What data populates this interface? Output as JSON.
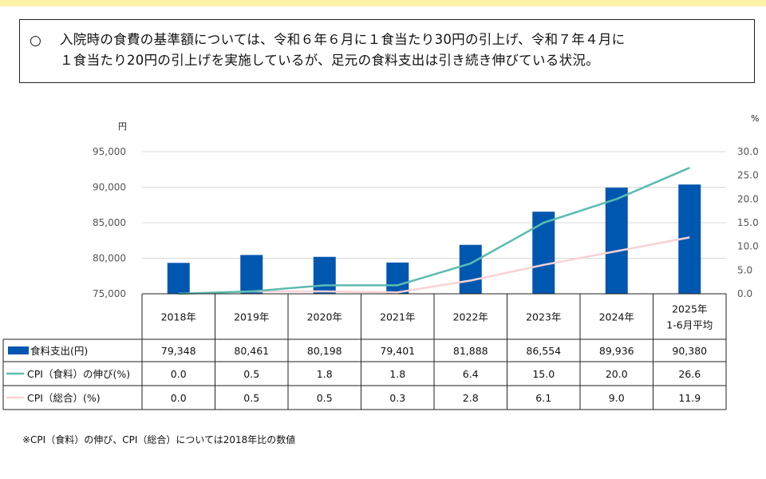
{
  "header": {
    "bullet": "○",
    "line1": "入院時の食費の基準額については、令和６年６月に１食当たり30円の引上げ、令和７年４月に",
    "line2": "１食当たり20円の引上げを実施しているが、足元の食料支出は引き続き伸びている状況。"
  },
  "footnote": "※CPI（食料）の伸び、CPI（総合）については2018年比の数値",
  "colors": {
    "bar": "#0057b0",
    "cpi_food": "#5bbcb0",
    "cpi_total": "#f7d3d6",
    "top_bar": "#fff2a8"
  },
  "chart_data": {
    "type": "bar+line",
    "left_unit": "円",
    "right_unit": "%",
    "categories": [
      [
        "2018年"
      ],
      [
        "2019年"
      ],
      [
        "2020年"
      ],
      [
        "2021年"
      ],
      [
        "2022年"
      ],
      [
        "2023年"
      ],
      [
        "2024年"
      ],
      [
        "2025年",
        "1-6月平均"
      ]
    ],
    "left_axis": {
      "min": 75000,
      "max": 95000,
      "ticks": [
        "75,000",
        "80,000",
        "85,000",
        "90,000",
        "95,000"
      ]
    },
    "right_axis": {
      "min": 0,
      "max": 30,
      "ticks": [
        "0.0",
        "5.0",
        "10.0",
        "15.0",
        "20.0",
        "25.0",
        "30.0"
      ]
    },
    "grid": true,
    "legend_placement": "table-left",
    "series": [
      {
        "name": "食料支出(円)",
        "type": "bar",
        "axis": "left",
        "values": [
          79348,
          80461,
          80198,
          79401,
          81888,
          86554,
          89936,
          90380
        ],
        "labels": [
          "79,348",
          "80,461",
          "80,198",
          "79,401",
          "81,888",
          "86,554",
          "89,936",
          "90,380"
        ]
      },
      {
        "name": "CPI（食料）の伸び(%)",
        "type": "line",
        "axis": "right",
        "values": [
          0.0,
          0.5,
          1.8,
          1.8,
          6.4,
          15.0,
          20.0,
          26.6
        ],
        "labels": [
          "0.0",
          "0.5",
          "1.8",
          "1.8",
          "6.4",
          "15.0",
          "20.0",
          "26.6"
        ]
      },
      {
        "name": "CPI（総合）(%)",
        "type": "line",
        "axis": "right",
        "values": [
          0.0,
          0.5,
          0.5,
          0.3,
          2.8,
          6.1,
          9.0,
          11.9
        ],
        "labels": [
          "0.0",
          "0.5",
          "0.5",
          "0.3",
          "2.8",
          "6.1",
          "9.0",
          "11.9"
        ]
      }
    ]
  }
}
